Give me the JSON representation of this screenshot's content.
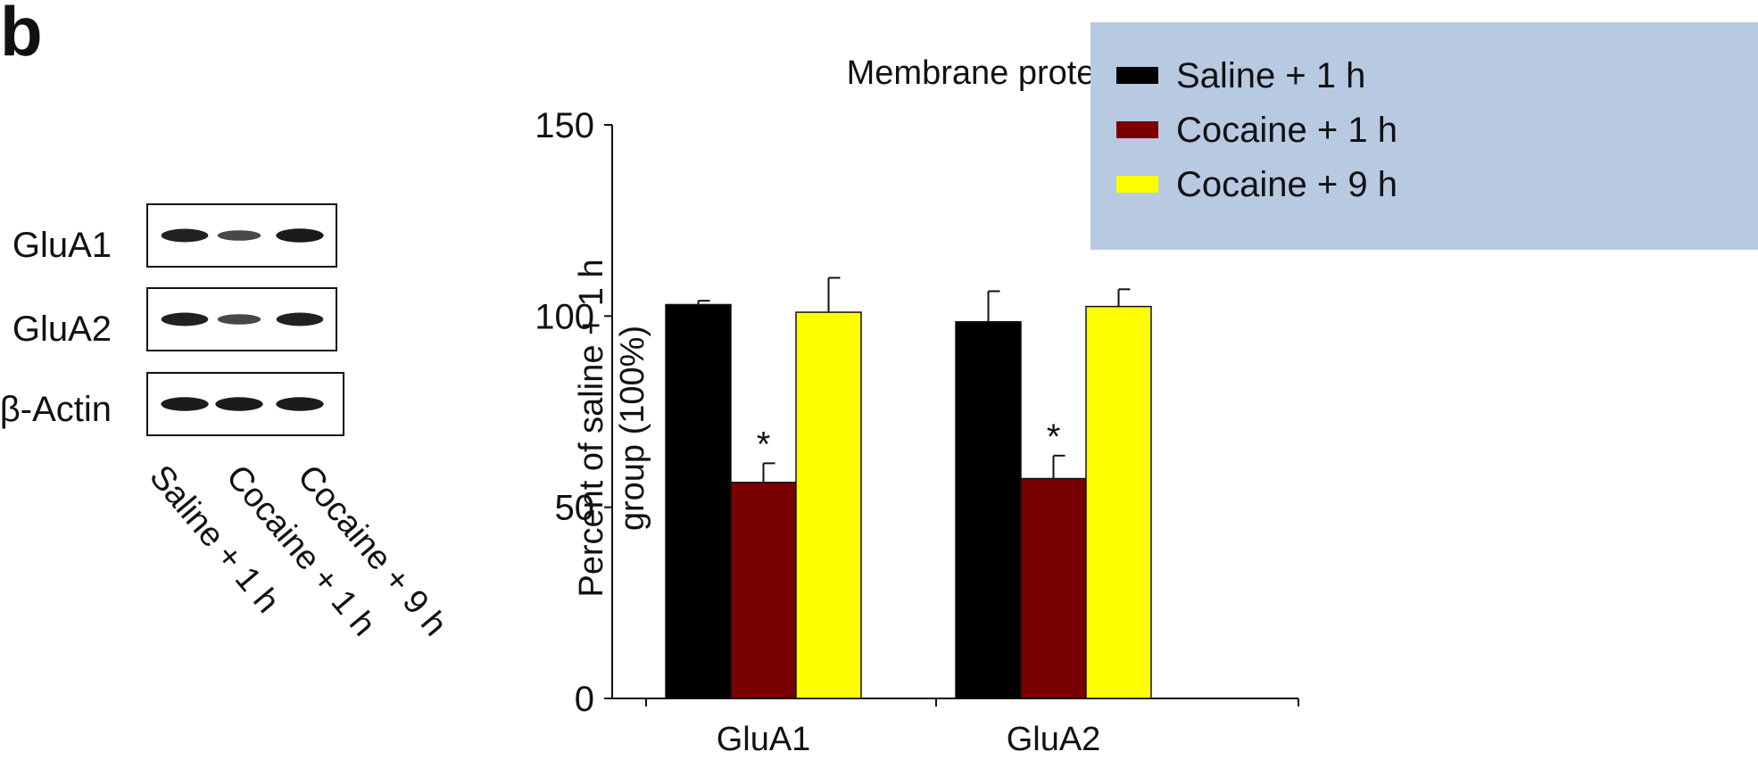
{
  "panel_label": "b",
  "western_blot": {
    "rows": [
      {
        "label": "GluA1",
        "band_intensity": [
          0.9,
          0.6,
          0.95
        ]
      },
      {
        "label": "GluA2",
        "band_intensity": [
          0.9,
          0.6,
          0.9
        ]
      },
      {
        "label": "β-Actin",
        "band_intensity": [
          0.95,
          0.95,
          0.95
        ]
      }
    ],
    "lanes": [
      "Saline + 1 h",
      "Cocaine + 1 h",
      "Cocaine + 9 h"
    ]
  },
  "chart_data": {
    "type": "bar",
    "title": "Membrane protein expression",
    "ylabel_lines": [
      "Percent of saline + 1 h",
      "group (100%)"
    ],
    "xlabel": "",
    "categories": [
      "GluA1",
      "GluA2"
    ],
    "series": [
      {
        "name": "Saline + 1 h",
        "color": "#000000",
        "values": [
          103,
          98.5
        ],
        "errors": [
          1,
          8
        ]
      },
      {
        "name": "Cocaine + 1 h",
        "color": "#7a0000",
        "values": [
          56.5,
          57.5
        ],
        "errors": [
          5,
          6
        ]
      },
      {
        "name": "Cocaine + 9 h",
        "color": "#ffff00",
        "values": [
          101,
          102.5
        ],
        "errors": [
          9,
          4.5
        ]
      }
    ],
    "significance": [
      {
        "category": "GluA1",
        "series": "Cocaine + 1 h",
        "mark": "*"
      },
      {
        "category": "GluA2",
        "series": "Cocaine + 1 h",
        "mark": "*"
      }
    ],
    "ylim": [
      0,
      150
    ],
    "yticks": [
      0,
      50,
      100,
      150
    ],
    "grid": false,
    "legend": {
      "placement": "top-right",
      "background": "#b8c9e2"
    }
  }
}
